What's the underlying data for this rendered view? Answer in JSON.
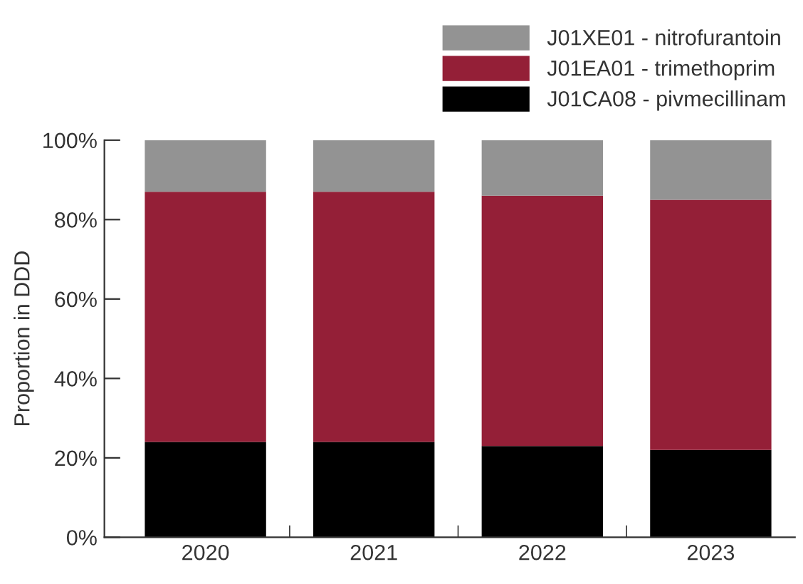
{
  "chart_data": {
    "type": "bar",
    "stacked": true,
    "ylabel": "Proportion in DDD",
    "categories": [
      "2020",
      "2021",
      "2022",
      "2023"
    ],
    "series": [
      {
        "name": "J01CA08 - pivmecillinam",
        "color": "#000000",
        "values": [
          24,
          24,
          23,
          22
        ]
      },
      {
        "name": "J01EA01 - trimethoprim",
        "color": "#941f37",
        "values": [
          63,
          63,
          63,
          63
        ]
      },
      {
        "name": "J01XE01 - nitrofurantoin",
        "color": "#939393",
        "values": [
          13,
          13,
          14,
          15
        ]
      }
    ],
    "ylim": [
      0,
      100
    ],
    "yticks": [
      {
        "value": 0,
        "label": "0%"
      },
      {
        "value": 20,
        "label": "20%"
      },
      {
        "value": 40,
        "label": "40%"
      },
      {
        "value": 60,
        "label": "60%"
      },
      {
        "value": 80,
        "label": "80%"
      },
      {
        "value": 100,
        "label": "100%"
      }
    ],
    "grid": false,
    "legend": "top right"
  }
}
